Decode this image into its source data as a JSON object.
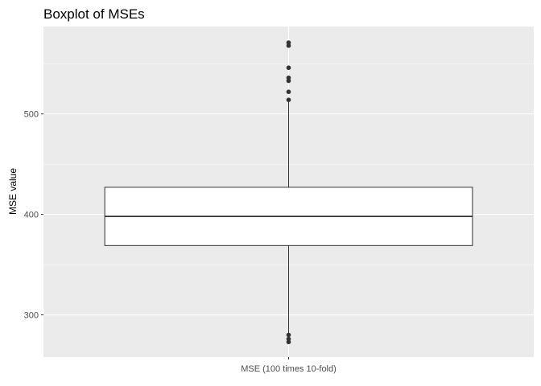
{
  "chart_data": {
    "type": "boxplot",
    "title": "Boxplot of MSEs",
    "xlabel": "",
    "ylabel": "MSE value",
    "categories": [
      "MSE (100 times 10-fold)"
    ],
    "y_ticks": [
      300,
      400,
      500
    ],
    "ylim": [
      258,
      587
    ],
    "grid": true,
    "legend": "none",
    "boxes": [
      {
        "category": "MSE (100 times 10-fold)",
        "q1": 369,
        "median": 398,
        "q3": 427,
        "whisker_low": 282,
        "whisker_high": 514,
        "outliers": [
          571,
          568,
          546,
          536,
          533,
          522,
          514,
          280,
          276,
          273
        ]
      }
    ]
  },
  "colors": {
    "panel_background": "#ebebeb",
    "grid_major": "#ffffff",
    "box_fill": "#ffffff",
    "box_line": "#333333",
    "outlier": "#333333",
    "tick_text": "#4d4d4d"
  }
}
